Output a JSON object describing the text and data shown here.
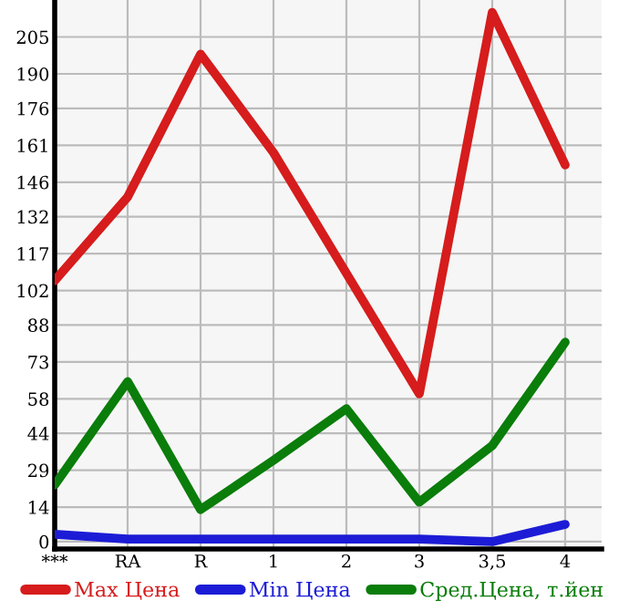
{
  "chart_data": {
    "type": "line",
    "categories": [
      "***",
      "RA",
      "R",
      "1",
      "2",
      "3",
      "3,5",
      "4"
    ],
    "series": [
      {
        "name": "Max Цена",
        "color": "#d61c1c",
        "values": [
          106,
          140,
          198,
          158,
          109,
          60,
          215,
          153
        ]
      },
      {
        "name": "Min Цена",
        "color": "#1c1cd6",
        "values": [
          3,
          1,
          1,
          1,
          1,
          1,
          0,
          7
        ]
      },
      {
        "name": "Сред.Цена, т.йен",
        "color": "#0a7d0a",
        "values": [
          23,
          65,
          13,
          33,
          54,
          16,
          39,
          81
        ]
      }
    ],
    "ylim": [
      -3,
      220
    ],
    "yticks": [
      0,
      14,
      29,
      44,
      58,
      73,
      88,
      102,
      117,
      132,
      146,
      161,
      176,
      190,
      205
    ],
    "grid": true,
    "legend": "bottom",
    "marker": "none",
    "line_style": "solid"
  }
}
